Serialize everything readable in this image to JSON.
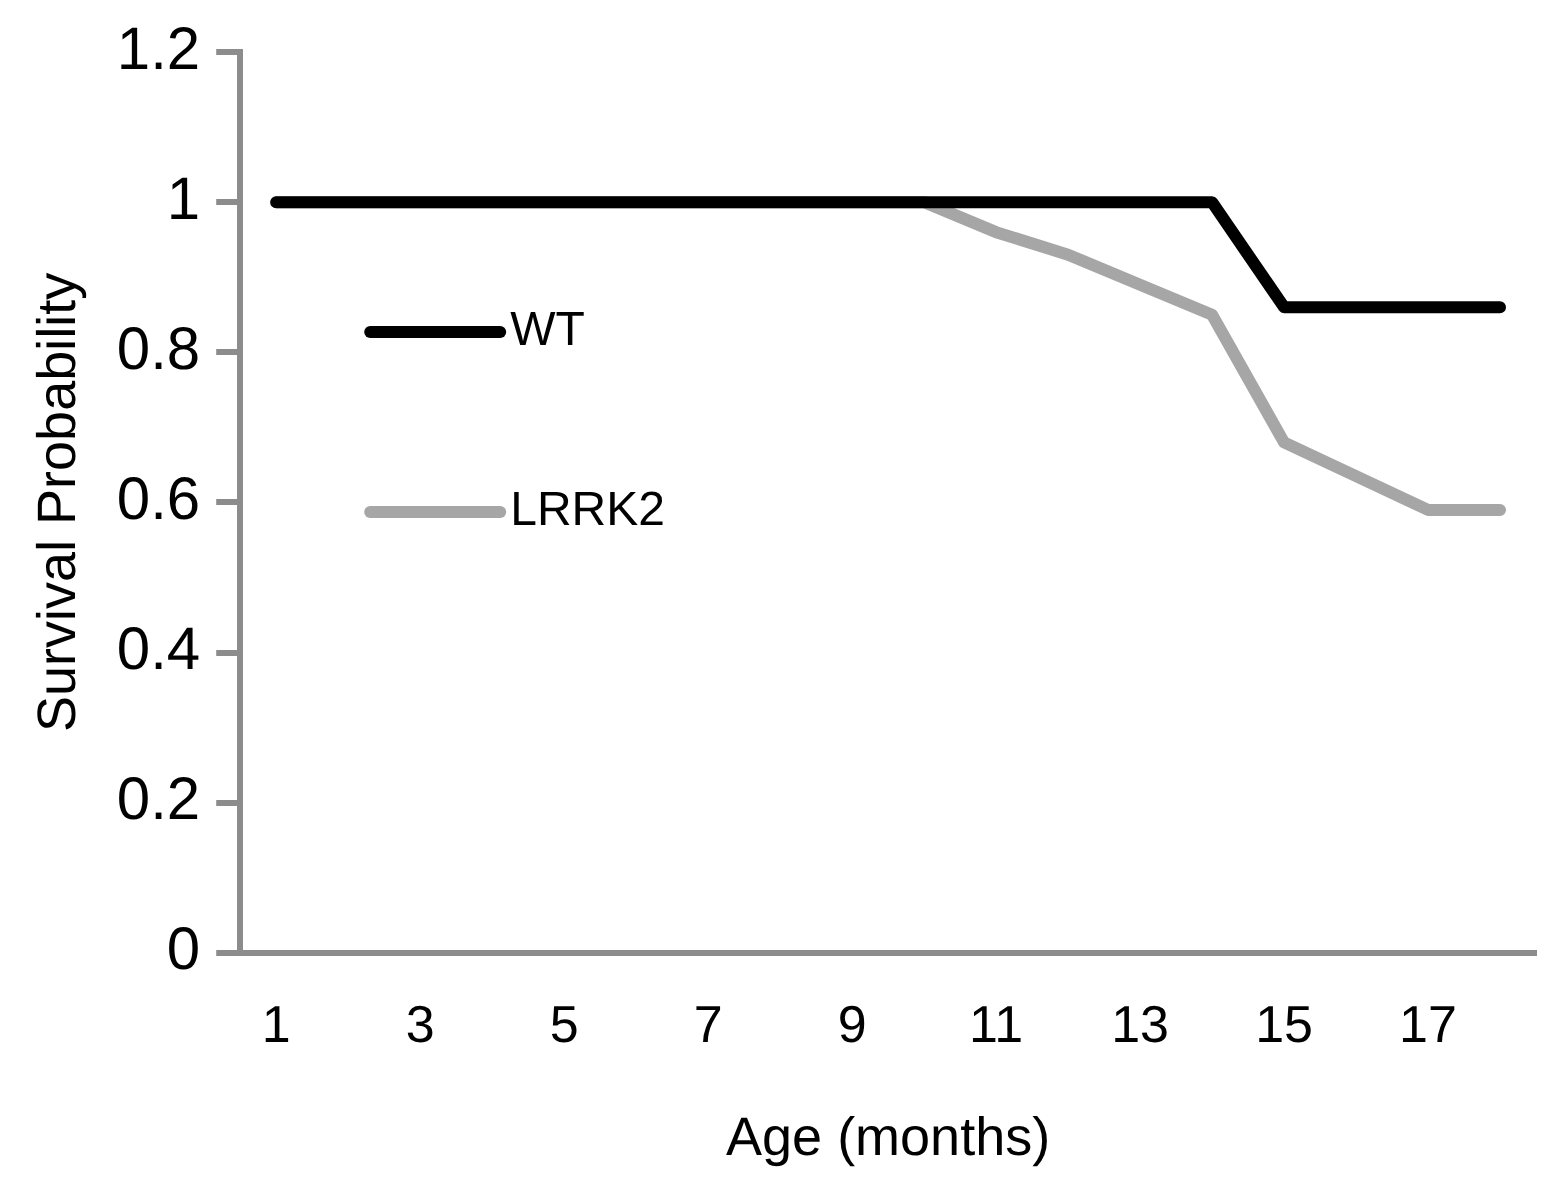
{
  "chart_data": {
    "type": "line",
    "xlabel": "Age (months)",
    "ylabel": "Survival Probability",
    "x": [
      1,
      2,
      3,
      4,
      5,
      6,
      7,
      8,
      9,
      10,
      11,
      12,
      13,
      14,
      15,
      16,
      17,
      18
    ],
    "xlim": [
      0.5,
      18.5
    ],
    "xticks": [
      1,
      3,
      5,
      7,
      9,
      11,
      13,
      15,
      17
    ],
    "series": [
      {
        "name": "WT",
        "color": "#000000",
        "values": [
          1,
          1,
          1,
          1,
          1,
          1,
          1,
          1,
          1,
          1,
          1,
          1,
          1,
          1,
          0.86,
          0.86,
          0.86,
          0.86
        ]
      },
      {
        "name": "LRRK2",
        "color": "#a6a6a6",
        "values": [
          1,
          1,
          1,
          1,
          1,
          1,
          1,
          1,
          1,
          1,
          0.96,
          0.93,
          0.89,
          0.85,
          0.68,
          0.635,
          0.59,
          0.59
        ]
      }
    ],
    "ylim": [
      0,
      1.2
    ],
    "yticks": [
      0,
      0.2,
      0.4,
      0.6,
      0.8,
      1,
      1.2
    ],
    "grid": false,
    "legend": "left",
    "marker": "none",
    "line_style": "solid"
  }
}
